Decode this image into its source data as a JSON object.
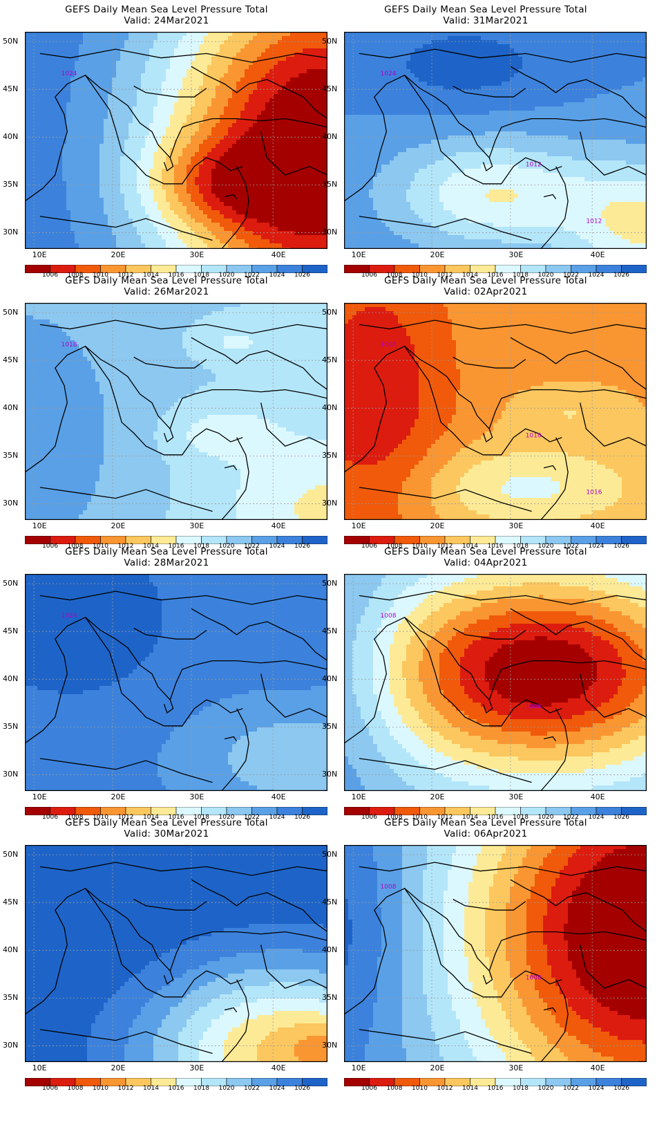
{
  "figure_title": "GEFS Daily Mean Sea Level Pressure Total",
  "colorbar": {
    "levels": [
      "1006",
      "1008",
      "1010",
      "1012",
      "1014",
      "1016",
      "1018",
      "1020",
      "1022",
      "1024",
      "1026"
    ],
    "colors": [
      "#a50000",
      "#dc1c0f",
      "#f05a0a",
      "#fa9632",
      "#fcc75e",
      "#fdea96",
      "#dcf8ff",
      "#b4e6fa",
      "#8cc8f0",
      "#5aa0e6",
      "#3c82dc",
      "#1e64c8"
    ]
  },
  "axes": {
    "lat_labels": [
      "50N",
      "45N",
      "40N",
      "35N",
      "30N"
    ],
    "lon_labels": [
      "10E",
      "20E",
      "30E",
      "40E"
    ]
  },
  "panels": [
    {
      "valid": "Valid: 24Mar2021",
      "contour_labels": [
        "1024"
      ],
      "pattern": "east-low"
    },
    {
      "valid": "Valid: 31Mar2021",
      "contour_labels": [
        "1024",
        "1012",
        "1012"
      ],
      "pattern": "north-high-south-low"
    },
    {
      "valid": "Valid: 26Mar2021",
      "contour_labels": [
        "1018"
      ],
      "pattern": "flat-mid"
    },
    {
      "valid": "Valid: 02Apr2021",
      "contour_labels": [
        "1008",
        "1010",
        "1016"
      ],
      "pattern": "broad-low"
    },
    {
      "valid": "Valid: 28Mar2021",
      "contour_labels": [
        "1024"
      ],
      "pattern": "broad-high"
    },
    {
      "valid": "Valid: 04Apr2021",
      "contour_labels": [
        "1008",
        "1006"
      ],
      "pattern": "central-low"
    },
    {
      "valid": "Valid: 30Mar2021",
      "contour_labels": [],
      "pattern": "north-high-se-low"
    },
    {
      "valid": "Valid: 06Apr2021",
      "contour_labels": [
        "1008",
        "1008"
      ],
      "pattern": "east-low-west-high"
    }
  ]
}
